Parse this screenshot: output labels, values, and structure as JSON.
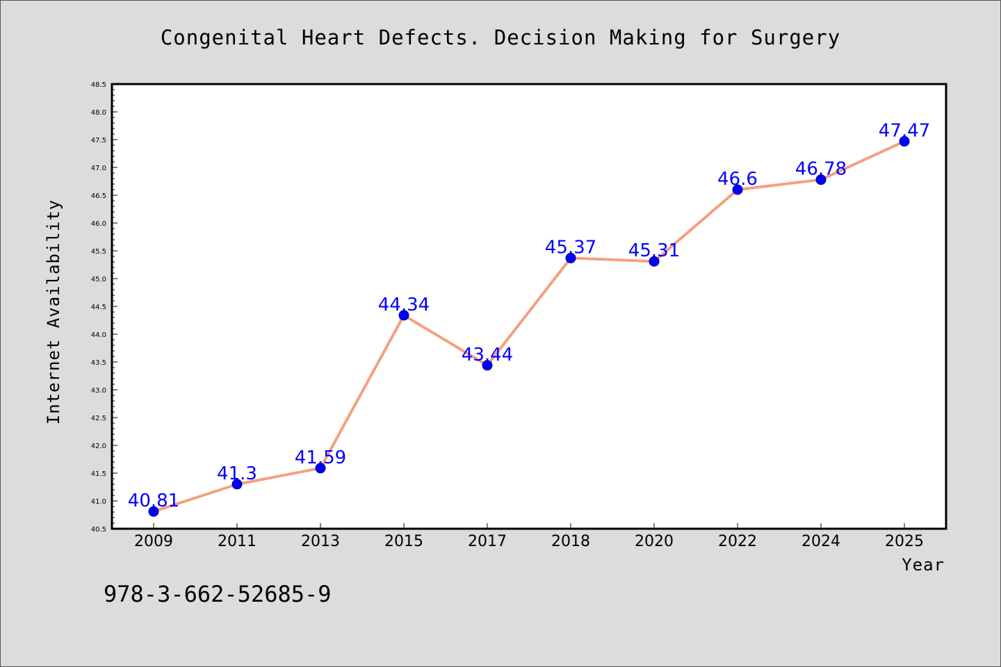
{
  "chart_data": {
    "type": "line",
    "title": "Congenital Heart Defects. Decision Making for Surgery",
    "xlabel": "Year",
    "ylabel": "Internet Availability",
    "categories": [
      "2009",
      "2011",
      "2013",
      "2015",
      "2017",
      "2018",
      "2020",
      "2022",
      "2024",
      "2025"
    ],
    "values": [
      40.81,
      41.3,
      41.59,
      44.34,
      43.44,
      45.37,
      45.31,
      46.6,
      46.78,
      47.47
    ],
    "data_labels": [
      "40.81",
      "41.3",
      "41.59",
      "44.34",
      "43.44",
      "45.37",
      "45.31",
      "46.6",
      "46.78",
      "47.47"
    ],
    "ylim": [
      40.5,
      48.5
    ],
    "yticks": [
      "40.5",
      "41.0",
      "41.5",
      "42.0",
      "42.5",
      "43.0",
      "43.5",
      "44.0",
      "44.5",
      "45.0",
      "45.5",
      "46.0",
      "46.5",
      "47.0",
      "47.5",
      "48.0",
      "48.5"
    ],
    "grid": false,
    "legend": "none",
    "colors": {
      "line": "#f4a07e",
      "marker": "#0000ff",
      "marker_edge": "#00008b",
      "data_label": "#0000ff",
      "plot_background": "#ffffff",
      "figure_background": "#dcdcdc"
    }
  },
  "footnote": "978-3-662-52685-9"
}
